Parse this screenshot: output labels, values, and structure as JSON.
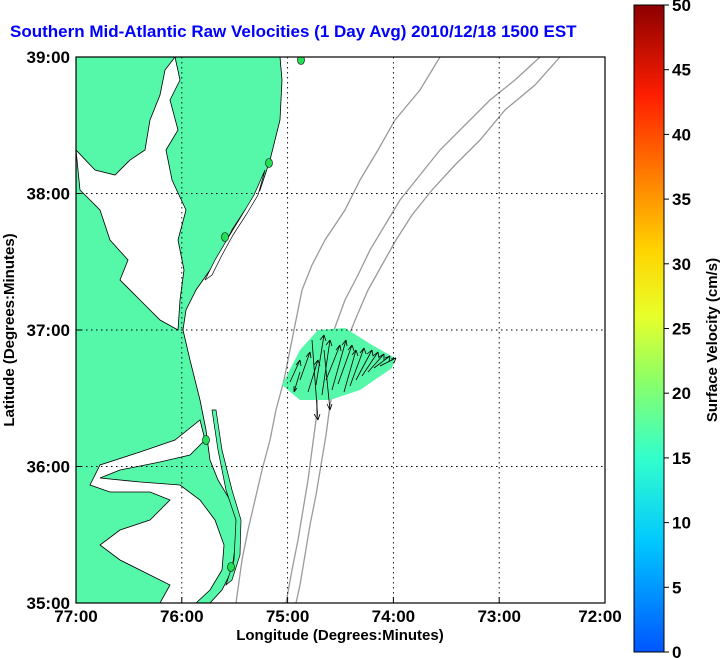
{
  "title": "Southern Mid-Atlantic Raw Velocities (1 Day Avg) 2010/12/18 1500 EST",
  "map": {
    "xlabel": "Longitude (Degrees:Minutes)",
    "ylabel": "Latitude (Degrees:Minutes)",
    "x_ticks": [
      "77:00",
      "76:00",
      "75:00",
      "74:00",
      "73:00",
      "72:00"
    ],
    "y_ticks": [
      "39:00",
      "38:00",
      "37:00",
      "36:00",
      "35:00"
    ],
    "land_color": "#55f7a8",
    "coast_color": "#000000",
    "bathy_color": "#9a9a9a",
    "station_color": "#22e055"
  },
  "colorbar": {
    "label": "Surface Velocity (cm/s)",
    "ticks": [
      "0",
      "5",
      "10",
      "15",
      "20",
      "25",
      "30",
      "35",
      "40",
      "45",
      "50"
    ]
  }
}
